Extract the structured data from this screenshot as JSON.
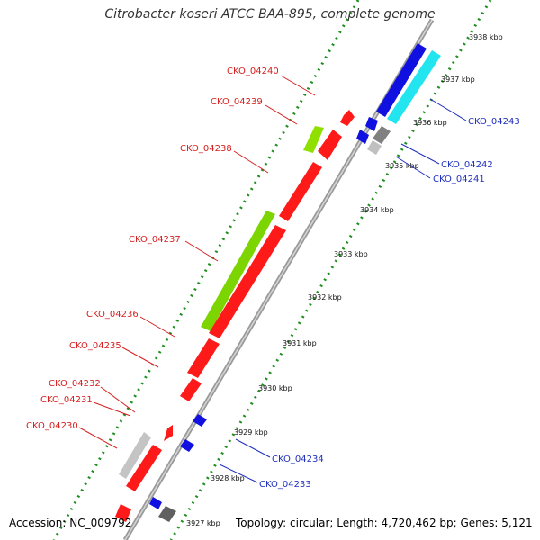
{
  "title": "Citrobacter koseri ATCC BAA-895, complete genome",
  "footer": {
    "accession": "Accession: NC_009792",
    "topology": "Topology: circular; Length: 4,720,462 bp; Genes: 5,121"
  },
  "ticks": [
    "3927 kbp",
    "3928 kbp",
    "3929 kbp",
    "3930 kbp",
    "3931 kbp",
    "3932 kbp",
    "3933 kbp",
    "3934 kbp",
    "3935 kbp",
    "3936 kbp",
    "3937 kbp",
    "3938 kbp"
  ],
  "genes_left": [
    "CKO_04240",
    "CKO_04239",
    "CKO_04238",
    "CKO_04237",
    "CKO_04236",
    "CKO_04235",
    "CKO_04232",
    "CKO_04231",
    "CKO_04230"
  ],
  "genes_right": [
    "CKO_04243",
    "CKO_04242",
    "CKO_04241",
    "CKO_04234",
    "CKO_04233"
  ],
  "colors": {
    "gene_red": "#ff1a1a",
    "gene_blue": "#1010e0",
    "gene_cyan": "#22e5f0",
    "gc_green": "#7cd500",
    "gc_gray": "#b8b8b8",
    "dot_green": "#1e8f1e",
    "label_red": "#d62020",
    "label_blue": "#1f2fbf",
    "backbone": "#888888"
  }
}
